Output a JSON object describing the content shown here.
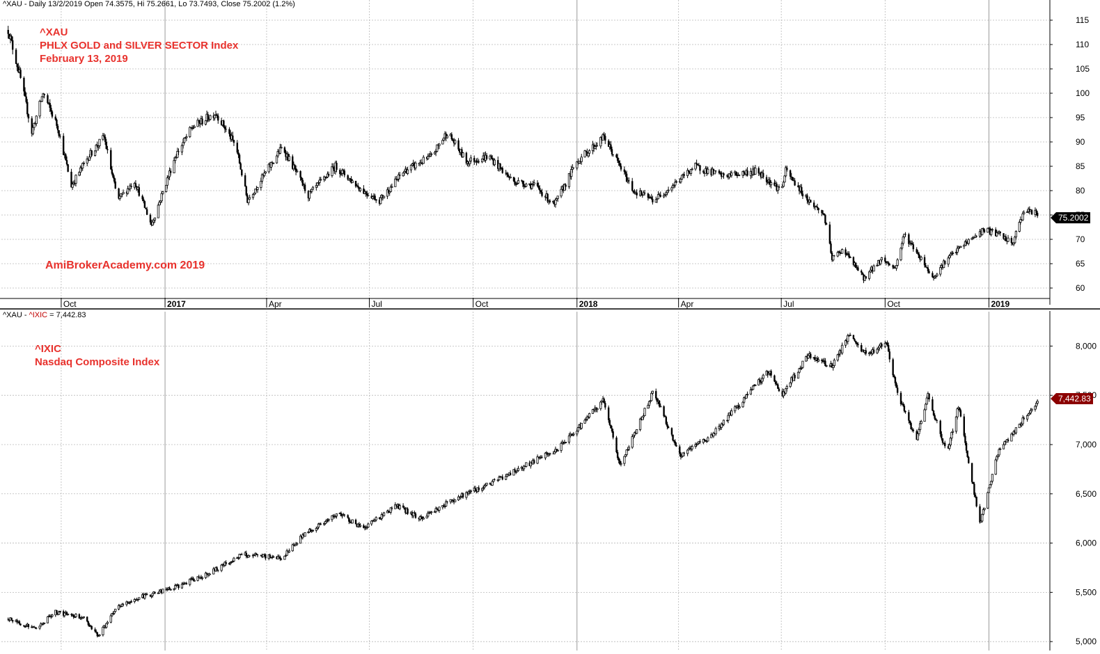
{
  "top_pane": {
    "header": "^XAU - Daily 13/2/2019 Open 74.3575, Hi 75.2661, Lo 73.7493, Close 75.2002 (1.2%)",
    "annotation_lines": [
      "^XAU",
      "PHLX GOLD and SILVER SECTOR Index",
      "February 13, 2019"
    ],
    "watermark": "AmiBrokerAcademy.com  2019",
    "last_value_label": "75.2002"
  },
  "bottom_pane": {
    "header_prefix": "^XAU - ",
    "header_symbol": "^IXIC",
    "header_value": " = 7,442.83",
    "annotation_lines": [
      "^IXIC",
      "Nasdaq Composite Index"
    ],
    "last_value_label": "7,442.83"
  },
  "colors": {
    "annotation": "#e8322d",
    "candle": "#000000",
    "grid": "#b8b8b8",
    "xau_tag": "#000000",
    "ixic_tag": "#8b0000"
  },
  "chart_data": [
    {
      "type": "candlestick",
      "symbol": "^XAU",
      "title": "PHLX GOLD and SILVER SECTOR Index",
      "date": "February 13, 2019",
      "x_tick_labels": [
        "Oct",
        "2017",
        "Apr",
        "Jul",
        "Oct",
        "2018",
        "Apr",
        "Jul",
        "Oct",
        "2019"
      ],
      "y_tick_labels": [
        "115",
        "110",
        "105",
        "100",
        "95",
        "90",
        "85",
        "80",
        "75",
        "70",
        "65",
        "60"
      ],
      "ylim": [
        58,
        117
      ],
      "grid": true,
      "approx_closes": [
        {
          "date": "2016-08-15",
          "value": 113
        },
        {
          "date": "2016-08-25",
          "value": 104
        },
        {
          "date": "2016-09-05",
          "value": 92
        },
        {
          "date": "2016-09-15",
          "value": 100
        },
        {
          "date": "2016-09-28",
          "value": 93
        },
        {
          "date": "2016-10-10",
          "value": 81
        },
        {
          "date": "2016-10-25",
          "value": 87
        },
        {
          "date": "2016-11-08",
          "value": 91
        },
        {
          "date": "2016-11-20",
          "value": 78
        },
        {
          "date": "2016-12-05",
          "value": 82
        },
        {
          "date": "2016-12-20",
          "value": 73
        },
        {
          "date": "2017-01-10",
          "value": 87
        },
        {
          "date": "2017-01-25",
          "value": 93
        },
        {
          "date": "2017-02-15",
          "value": 96
        },
        {
          "date": "2017-03-05",
          "value": 89
        },
        {
          "date": "2017-03-15",
          "value": 78
        },
        {
          "date": "2017-04-01",
          "value": 84
        },
        {
          "date": "2017-04-15",
          "value": 89
        },
        {
          "date": "2017-05-08",
          "value": 79
        },
        {
          "date": "2017-06-01",
          "value": 85
        },
        {
          "date": "2017-06-25",
          "value": 80
        },
        {
          "date": "2017-07-10",
          "value": 78
        },
        {
          "date": "2017-08-01",
          "value": 84
        },
        {
          "date": "2017-08-25",
          "value": 87
        },
        {
          "date": "2017-09-08",
          "value": 92
        },
        {
          "date": "2017-09-25",
          "value": 86
        },
        {
          "date": "2017-10-15",
          "value": 87
        },
        {
          "date": "2017-11-05",
          "value": 82
        },
        {
          "date": "2017-11-25",
          "value": 81
        },
        {
          "date": "2017-12-12",
          "value": 77
        },
        {
          "date": "2018-01-01",
          "value": 86
        },
        {
          "date": "2018-01-25",
          "value": 91
        },
        {
          "date": "2018-02-08",
          "value": 85
        },
        {
          "date": "2018-02-20",
          "value": 80
        },
        {
          "date": "2018-03-10",
          "value": 78
        },
        {
          "date": "2018-04-01",
          "value": 82
        },
        {
          "date": "2018-04-15",
          "value": 85
        },
        {
          "date": "2018-05-10",
          "value": 83
        },
        {
          "date": "2018-06-10",
          "value": 84
        },
        {
          "date": "2018-07-01",
          "value": 80
        },
        {
          "date": "2018-07-05",
          "value": 84
        },
        {
          "date": "2018-07-25",
          "value": 78
        },
        {
          "date": "2018-08-08",
          "value": 75
        },
        {
          "date": "2018-08-15",
          "value": 66
        },
        {
          "date": "2018-08-25",
          "value": 68
        },
        {
          "date": "2018-09-12",
          "value": 62
        },
        {
          "date": "2018-09-28",
          "value": 66
        },
        {
          "date": "2018-10-10",
          "value": 64
        },
        {
          "date": "2018-10-18",
          "value": 71
        },
        {
          "date": "2018-11-05",
          "value": 65
        },
        {
          "date": "2018-11-12",
          "value": 62
        },
        {
          "date": "2018-11-25",
          "value": 66
        },
        {
          "date": "2018-12-10",
          "value": 69
        },
        {
          "date": "2018-12-28",
          "value": 72
        },
        {
          "date": "2019-01-10",
          "value": 71
        },
        {
          "date": "2019-01-22",
          "value": 69
        },
        {
          "date": "2019-02-01",
          "value": 76
        },
        {
          "date": "2019-02-13",
          "value": 75.2002
        }
      ],
      "last_bar": {
        "date": "2019-02-13",
        "open": 74.3575,
        "high": 75.2661,
        "low": 73.7493,
        "close": 75.2002,
        "change_pct": 1.2
      }
    },
    {
      "type": "candlestick",
      "symbol": "^IXIC",
      "title": "Nasdaq Composite Index",
      "y_tick_labels": [
        "8,000",
        "7,500",
        "7,000",
        "6,500",
        "6,000",
        "5,500",
        "5,000"
      ],
      "ylim": [
        4980,
        8250
      ],
      "grid": true,
      "approx_closes": [
        {
          "date": "2016-08-15",
          "value": 5230
        },
        {
          "date": "2016-09-09",
          "value": 5130
        },
        {
          "date": "2016-09-25",
          "value": 5300
        },
        {
          "date": "2016-10-20",
          "value": 5250
        },
        {
          "date": "2016-11-03",
          "value": 5060
        },
        {
          "date": "2016-11-20",
          "value": 5350
        },
        {
          "date": "2016-12-10",
          "value": 5450
        },
        {
          "date": "2017-01-10",
          "value": 5550
        },
        {
          "date": "2017-02-10",
          "value": 5700
        },
        {
          "date": "2017-03-10",
          "value": 5880
        },
        {
          "date": "2017-04-15",
          "value": 5850
        },
        {
          "date": "2017-05-05",
          "value": 6100
        },
        {
          "date": "2017-06-05",
          "value": 6300
        },
        {
          "date": "2017-06-25",
          "value": 6150
        },
        {
          "date": "2017-07-25",
          "value": 6380
        },
        {
          "date": "2017-08-15",
          "value": 6250
        },
        {
          "date": "2017-09-15",
          "value": 6450
        },
        {
          "date": "2017-10-15",
          "value": 6600
        },
        {
          "date": "2017-11-15",
          "value": 6780
        },
        {
          "date": "2017-12-15",
          "value": 6950
        },
        {
          "date": "2018-01-25",
          "value": 7450
        },
        {
          "date": "2018-02-08",
          "value": 6780
        },
        {
          "date": "2018-03-10",
          "value": 7550
        },
        {
          "date": "2018-04-02",
          "value": 6880
        },
        {
          "date": "2018-05-01",
          "value": 7100
        },
        {
          "date": "2018-06-20",
          "value": 7750
        },
        {
          "date": "2018-07-01",
          "value": 7500
        },
        {
          "date": "2018-07-25",
          "value": 7900
        },
        {
          "date": "2018-08-15",
          "value": 7800
        },
        {
          "date": "2018-08-30",
          "value": 8100
        },
        {
          "date": "2018-09-15",
          "value": 7900
        },
        {
          "date": "2018-10-02",
          "value": 8050
        },
        {
          "date": "2018-10-12",
          "value": 7500
        },
        {
          "date": "2018-10-29",
          "value": 7050
        },
        {
          "date": "2018-11-08",
          "value": 7500
        },
        {
          "date": "2018-11-25",
          "value": 6900
        },
        {
          "date": "2018-12-05",
          "value": 7400
        },
        {
          "date": "2018-12-24",
          "value": 6200
        },
        {
          "date": "2019-01-10",
          "value": 6950
        },
        {
          "date": "2019-01-25",
          "value": 7150
        },
        {
          "date": "2019-02-13",
          "value": 7442.83
        }
      ]
    }
  ]
}
